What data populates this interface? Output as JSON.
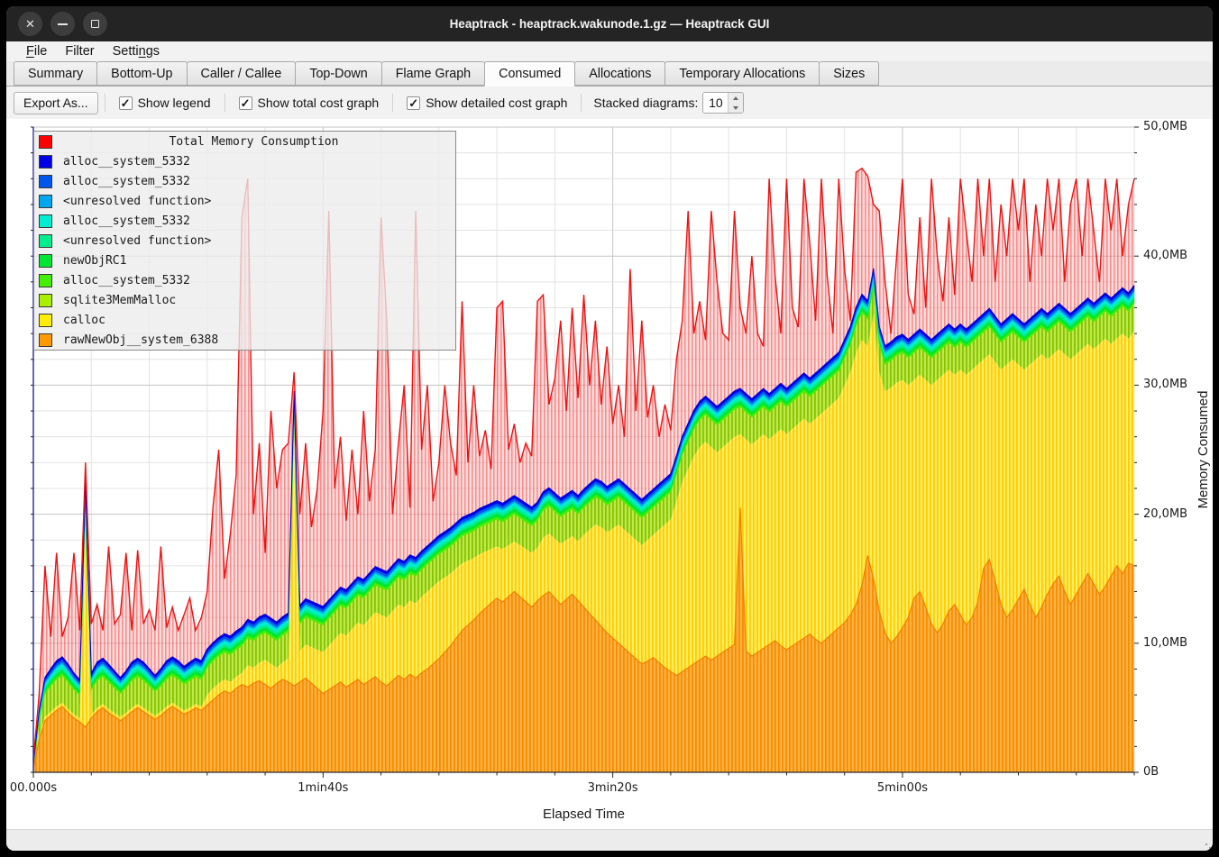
{
  "window": {
    "title": "Heaptrack - heaptrack.wakunode.1.gz — Heaptrack GUI",
    "buttons": [
      "close",
      "minimize",
      "maximize"
    ]
  },
  "menu": {
    "items": [
      {
        "label": "File",
        "underline": 0
      },
      {
        "label": "Filter",
        "underline": -1
      },
      {
        "label": "Settings",
        "underline": 5
      }
    ]
  },
  "tabs": [
    {
      "label": "Summary",
      "active": false
    },
    {
      "label": "Bottom-Up",
      "active": false
    },
    {
      "label": "Caller / Callee",
      "active": false
    },
    {
      "label": "Top-Down",
      "active": false
    },
    {
      "label": "Flame Graph",
      "active": false
    },
    {
      "label": "Consumed",
      "active": true
    },
    {
      "label": "Allocations",
      "active": false
    },
    {
      "label": "Temporary Allocations",
      "active": false
    },
    {
      "label": "Sizes",
      "active": false
    }
  ],
  "toolbar": {
    "export_label": "Export As...",
    "checkboxes": [
      {
        "label": "Show legend",
        "checked": true
      },
      {
        "label": "Show total cost graph",
        "checked": true
      },
      {
        "label": "Show detailed cost graph",
        "checked": true
      }
    ],
    "stacked_label": "Stacked diagrams:",
    "stacked_value": "10"
  },
  "legend": {
    "title": "Total Memory Consumption",
    "title_color": "#ff0000",
    "items": [
      {
        "label": "alloc__system_5332",
        "color": "#0000e6"
      },
      {
        "label": "alloc__system_5332",
        "color": "#0055ee"
      },
      {
        "label": "<unresolved function>",
        "color": "#00a6ee"
      },
      {
        "label": "alloc__system_5332",
        "color": "#00eed2"
      },
      {
        "label": "<unresolved function>",
        "color": "#00ee8e"
      },
      {
        "label": "newObjRC1",
        "color": "#00e632"
      },
      {
        "label": "alloc__system_5332",
        "color": "#44ee00"
      },
      {
        "label": "sqlite3MemMalloc",
        "color": "#aaee00"
      },
      {
        "label": "calloc",
        "color": "#ffee00"
      },
      {
        "label": "rawNewObj__system_6388",
        "color": "#ff9900"
      }
    ]
  },
  "axes": {
    "x": {
      "title": "Elapsed Time",
      "ticks": [
        {
          "label": "00.000s",
          "value": 0
        },
        {
          "label": "1min40s",
          "value": 100
        },
        {
          "label": "3min20s",
          "value": 200
        },
        {
          "label": "5min00s",
          "value": 300
        }
      ],
      "minor_step": 20,
      "max": 380
    },
    "y": {
      "title": "Memory Consumed",
      "ticks": [
        {
          "label": "0B",
          "value": 0
        },
        {
          "label": "10,0MB",
          "value": 10
        },
        {
          "label": "20,0MB",
          "value": 20
        },
        {
          "label": "30,0MB",
          "value": 30
        },
        {
          "label": "40,0MB",
          "value": 40
        },
        {
          "label": "50,0MB",
          "value": 50
        }
      ],
      "minor_step": 2,
      "max": 50
    }
  },
  "chart_data": {
    "type": "area",
    "stacked": true,
    "title": "Total Memory Consumption",
    "xlabel": "Elapsed Time",
    "ylabel": "Memory Consumed",
    "x_unit": "s",
    "y_unit": "MB",
    "xlim": [
      0,
      380
    ],
    "ylim": [
      0,
      50
    ],
    "x_start": 0,
    "x_step": 2,
    "grid": true,
    "legend_position": "top-left",
    "series": [
      {
        "name": "rawNewObj__system_6388",
        "color": "#ff9900",
        "stripe": "#f78d00",
        "type": "cumulative",
        "values": [
          0.3,
          2.5,
          4.0,
          4.4,
          4.8,
          5.1,
          4.6,
          4.2,
          3.9,
          3.5,
          4.2,
          4.7,
          5.0,
          4.6,
          4.3,
          4.0,
          4.3,
          4.7,
          5.0,
          4.7,
          4.4,
          4.1,
          4.4,
          4.8,
          5.1,
          4.8,
          4.5,
          4.7,
          5.0,
          4.8,
          5.2,
          5.6,
          6.0,
          6.3,
          6.1,
          6.5,
          6.8,
          6.6,
          6.9,
          7.1,
          6.8,
          6.5,
          6.9,
          7.2,
          7.0,
          6.7,
          7.0,
          7.3,
          6.9,
          6.5,
          6.1,
          6.4,
          6.7,
          7.0,
          6.6,
          6.9,
          7.2,
          6.8,
          7.1,
          7.4,
          7.0,
          6.7,
          7.1,
          7.5,
          7.2,
          7.6,
          7.3,
          7.7,
          8.0,
          8.4,
          8.8,
          9.3,
          9.8,
          10.4,
          11.0,
          11.4,
          11.8,
          12.3,
          12.7,
          13.1,
          13.5,
          13.2,
          13.6,
          14.0,
          13.6,
          13.2,
          12.8,
          13.3,
          13.7,
          14.0,
          13.5,
          13.0,
          13.4,
          13.8,
          13.3,
          12.8,
          12.3,
          11.8,
          11.3,
          10.8,
          10.4,
          10.0,
          9.6,
          9.2,
          8.8,
          8.4,
          8.6,
          8.9,
          8.5,
          8.1,
          7.8,
          7.5,
          7.8,
          8.1,
          8.4,
          8.7,
          9.0,
          8.7,
          9.0,
          9.3,
          9.6,
          9.9,
          20.5,
          9.4,
          9.0,
          9.3,
          9.6,
          9.9,
          10.2,
          9.8,
          9.5,
          9.8,
          10.1,
          10.4,
          10.7,
          10.3,
          10.0,
          10.4,
          10.8,
          11.2,
          11.6,
          12.2,
          13.0,
          14.5,
          16.8,
          15.0,
          12.5,
          10.8,
          10.0,
          10.5,
          11.2,
          12.0,
          13.5,
          14.0,
          12.8,
          11.5,
          10.8,
          11.5,
          12.5,
          13.0,
          12.2,
          11.4,
          12.0,
          13.2,
          15.8,
          16.5,
          14.8,
          13.0,
          12.0,
          12.6,
          13.4,
          14.2,
          13.0,
          12.0,
          12.8,
          13.8,
          14.6,
          15.2,
          14.0,
          13.0,
          13.8,
          14.6,
          15.4,
          14.6,
          13.8,
          14.4,
          15.2,
          16.0,
          15.4,
          16.2,
          16.0
        ]
      },
      {
        "name": "calloc",
        "color": "#ffee00",
        "stripe": "#ffcc00",
        "type": "cumulative",
        "values": [
          0.4,
          2.8,
          4.3,
          4.7,
          5.1,
          5.4,
          4.9,
          4.5,
          4.2,
          19.0,
          4.5,
          5.0,
          5.3,
          4.9,
          4.6,
          4.3,
          4.6,
          5.0,
          5.3,
          5.0,
          4.7,
          4.4,
          4.7,
          5.1,
          5.4,
          5.1,
          4.8,
          5.0,
          5.3,
          5.1,
          6.0,
          6.5,
          6.9,
          7.2,
          7.0,
          7.4,
          7.7,
          8.3,
          8.1,
          8.5,
          8.7,
          8.4,
          8.1,
          8.5,
          8.8,
          26.0,
          9.4,
          9.9,
          9.7,
          9.5,
          9.3,
          9.8,
          10.3,
          10.8,
          10.6,
          11.1,
          11.6,
          11.4,
          11.9,
          12.4,
          12.2,
          12.0,
          12.5,
          13.0,
          12.8,
          13.3,
          13.1,
          13.6,
          14.0,
          14.4,
          14.8,
          15.1,
          15.4,
          15.8,
          16.2,
          16.4,
          16.6,
          16.9,
          17.1,
          17.3,
          17.5,
          17.3,
          17.6,
          17.9,
          17.6,
          17.3,
          17.0,
          17.4,
          18.2,
          18.5,
          18.1,
          17.7,
          18.0,
          18.3,
          17.9,
          18.4,
          18.8,
          19.2,
          19.0,
          18.6,
          18.9,
          19.2,
          18.8,
          18.4,
          18.0,
          17.6,
          18.0,
          18.4,
          18.8,
          19.2,
          19.6,
          21.0,
          22.5,
          23.5,
          24.5,
          25.2,
          25.6,
          25.2,
          24.8,
          25.2,
          25.6,
          26.0,
          26.2,
          25.8,
          25.4,
          25.8,
          26.2,
          25.8,
          26.2,
          26.6,
          26.2,
          26.6,
          27.0,
          27.4,
          27.0,
          27.4,
          27.8,
          28.2,
          28.6,
          29.0,
          30.0,
          31.0,
          32.5,
          33.5,
          33.0,
          35.5,
          31.0,
          29.5,
          29.8,
          30.2,
          30.4,
          30.0,
          30.4,
          30.8,
          30.4,
          30.0,
          30.4,
          30.8,
          31.2,
          30.8,
          31.2,
          30.8,
          31.2,
          31.6,
          32.0,
          32.4,
          31.8,
          31.2,
          31.6,
          32.0,
          31.6,
          31.2,
          31.6,
          32.0,
          32.4,
          32.0,
          32.4,
          32.8,
          32.4,
          32.0,
          32.4,
          32.8,
          33.2,
          32.8,
          33.2,
          33.6,
          33.2,
          33.6,
          34.0,
          33.6,
          34.2
        ]
      },
      {
        "name": "sqlite3MemMalloc",
        "color": "#aaee00",
        "stripe": "#86c400",
        "type": "band",
        "thickness": 2.1
      },
      {
        "name": "alloc__system_5332",
        "color": "#44ee00",
        "type": "band",
        "thickness": 0.2
      },
      {
        "name": "newObjRC1",
        "color": "#00e632",
        "type": "band",
        "thickness": 0.25
      },
      {
        "name": "<unresolved function>",
        "color": "#00ee8e",
        "type": "band",
        "thickness": 0.2
      },
      {
        "name": "alloc__system_5332",
        "color": "#00eed2",
        "type": "band",
        "thickness": 0.25
      },
      {
        "name": "<unresolved function>",
        "color": "#00a6ee",
        "type": "band",
        "thickness": 0.15
      },
      {
        "name": "alloc__system_5332",
        "color": "#0055ee",
        "type": "band",
        "thickness": 0.2
      },
      {
        "name": "alloc__system_5332",
        "color": "#0000e6",
        "type": "band",
        "thickness": 0.2
      },
      {
        "name": "Total Memory Consumption",
        "color": "#ff0000",
        "type": "cumulative",
        "values": [
          1.0,
          6.0,
          16.0,
          10.5,
          17.0,
          10.5,
          12.0,
          17.0,
          11.0,
          24.0,
          11.5,
          13.0,
          11.0,
          17.5,
          11.5,
          12.2,
          17.0,
          11.0,
          17.2,
          11.5,
          12.6,
          11.0,
          17.5,
          11.2,
          12.8,
          11.0,
          12.2,
          13.5,
          11.0,
          12.0,
          14.0,
          20.5,
          25.0,
          15.0,
          18.5,
          23.0,
          43.0,
          46.0,
          20.0,
          25.5,
          17.0,
          28.0,
          22.0,
          25.0,
          25.5,
          31.0,
          20.0,
          25.5,
          19.0,
          22.0,
          28.0,
          43.5,
          22.0,
          26.0,
          19.5,
          25.0,
          20.0,
          28.0,
          21.0,
          25.0,
          43.0,
          35.0,
          20.0,
          25.5,
          30.0,
          20.5,
          43.5,
          25.0,
          30.0,
          21.0,
          24.0,
          30.0,
          25.5,
          23.0,
          36.5,
          24.0,
          30.0,
          24.5,
          26.5,
          23.5,
          36.0,
          36.5,
          25.0,
          27.0,
          24.0,
          25.5,
          24.5,
          36.5,
          37.0,
          28.5,
          30.5,
          35.0,
          28.0,
          36.0,
          29.0,
          37.0,
          30.0,
          35.0,
          28.5,
          33.0,
          27.0,
          30.0,
          26.0,
          39.0,
          28.0,
          35.0,
          27.5,
          30.0,
          26.0,
          28.5,
          26.5,
          32.0,
          35.0,
          43.5,
          34.0,
          36.5,
          33.5,
          43.5,
          38.0,
          34.0,
          33.5,
          43.5,
          36.0,
          34.0,
          40.0,
          34.0,
          33.0,
          46.0,
          38.5,
          34.0,
          46.0,
          36.0,
          34.5,
          46.0,
          41.0,
          35.0,
          46.0,
          38.5,
          34.0,
          46.0,
          39.0,
          35.0,
          46.5,
          46.8,
          46.2,
          44.0,
          43.5,
          38.0,
          34.0,
          40.0,
          46.0,
          37.0,
          35.5,
          43.0,
          36.0,
          46.0,
          40.0,
          36.5,
          43.0,
          37.0,
          46.0,
          42.0,
          38.0,
          46.0,
          40.0,
          46.0,
          38.0,
          44.0,
          40.0,
          46.0,
          42.0,
          46.0,
          38.0,
          44.0,
          40.0,
          46.0,
          42.0,
          46.0,
          38.0,
          44.0,
          46.0,
          40.0,
          46.0,
          42.0,
          38.0,
          46.0,
          42.0,
          46.0,
          40.0,
          44.0,
          46.0
        ]
      }
    ]
  }
}
